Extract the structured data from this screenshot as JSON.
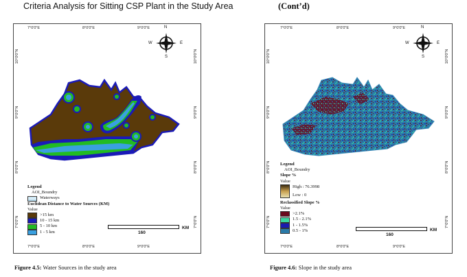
{
  "page": {
    "title_left": "Criteria Analysis for Sitting CSP Plant in the Study Area",
    "title_right": "(Cont’d)"
  },
  "maps": [
    {
      "ticks_top": [
        "7°0'0\"E",
        "8°0'0\"E",
        "9°0'0\"E"
      ],
      "ticks_bottom": [
        "7°0'0\"E",
        "8°0'0\"E",
        "9°0'0\"E"
      ],
      "ticks_left": [
        "10°0'0\"N",
        "9°0'0\"N",
        "8°0'0\"N",
        "7°0'0\"N"
      ],
      "ticks_right": [
        "10°0'0\"N",
        "9°0'0\"N",
        "8°0'0\"N",
        "7°0'0\"N"
      ],
      "compass": {
        "n": "N",
        "s": "S",
        "e": "E",
        "w": "W"
      },
      "legend": {
        "title": "Legend",
        "aoi": "AOI_Boundry",
        "waterways": "Waterways",
        "layer_title": "Euclidean Distance to Water Sources (KM)",
        "value_label": "Value",
        "classes": [
          {
            "label": ">15 km",
            "color": "#5a3a0a"
          },
          {
            "label": "10 - 15 km",
            "color": "#1a1ab8"
          },
          {
            "label": "5 - 10 km",
            "color": "#22bb22"
          },
          {
            "label": "1 - 5 km",
            "color": "#3aa0e0"
          }
        ]
      },
      "scale": {
        "value": "160",
        "unit": "KM"
      },
      "caption_bold": "Figure 4.5:",
      "caption_text": " Water Sources in the study area"
    },
    {
      "ticks_top": [
        "7°0'0\"E",
        "8°0'0\"E",
        "9°0'0\"E"
      ],
      "ticks_bottom": [
        "7°0'0\"E",
        "8°0'0\"E",
        "9°0'0\"E"
      ],
      "ticks_left": [
        "10°0'0\"N",
        "9°0'0\"N",
        "8°0'0\"N",
        "7°0'0\"N"
      ],
      "ticks_right": [
        "10°0'0\"N",
        "9°0'0\"N",
        "8°0'0\"N",
        "7°0'0\"N"
      ],
      "compass": {
        "n": "N",
        "s": "S",
        "e": "E",
        "w": "W"
      },
      "legend": {
        "title": "Legend",
        "aoi": "AOI_Boundry",
        "slope_title": "Slope %",
        "value_label": "Value",
        "high": "High : 76.3998",
        "low": "Low : 0",
        "reclass_title": "Reclassified Slope %",
        "value_label2": "Value",
        "classes": [
          {
            "label": ">2.1%",
            "color": "#6a0a1e"
          },
          {
            "label": "1.5 - 2.1%",
            "color": "#3ad8a0"
          },
          {
            "label": "1 - 1.5%",
            "color": "#1a1ab0"
          },
          {
            "label": "0.5 - 1%",
            "color": "#2a7aa8"
          }
        ]
      },
      "scale": {
        "value": "160",
        "unit": "KM"
      },
      "caption_bold": "Figure 4.6:",
      "caption_text": " Slope in the study area"
    }
  ]
}
